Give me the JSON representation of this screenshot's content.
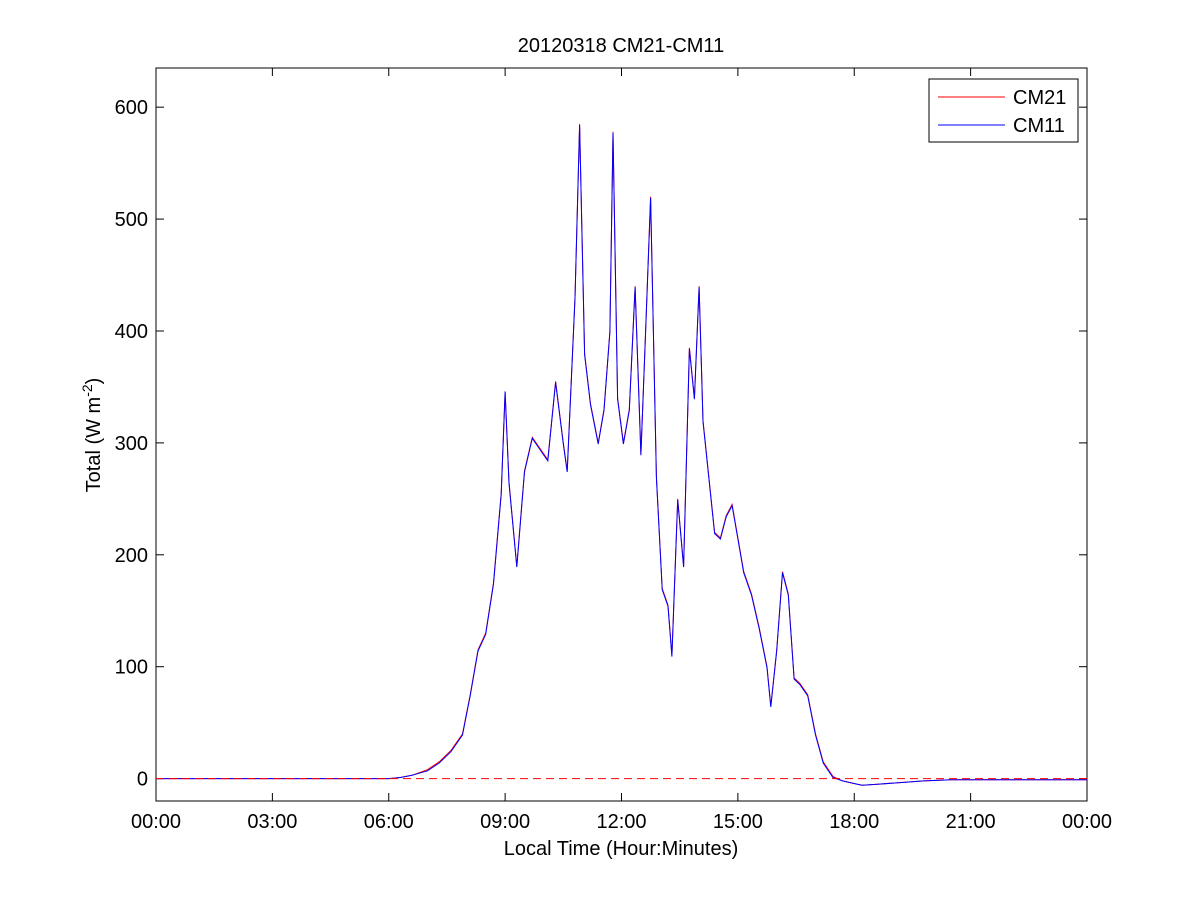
{
  "chart_data": {
    "type": "line",
    "title": "20120318 CM21-CM11",
    "xlabel": "Local Time (Hour:Minutes)",
    "ylabel": {
      "main": "Total (W m",
      "sup": "-2",
      "close": ")"
    },
    "xlim": [
      0,
      24
    ],
    "ylim": [
      -20,
      635
    ],
    "x_ticks": [
      0,
      3,
      6,
      9,
      12,
      15,
      18,
      21,
      24
    ],
    "x_tick_labels": [
      "00:00",
      "03:00",
      "06:00",
      "09:00",
      "12:00",
      "15:00",
      "18:00",
      "21:00",
      "00:00"
    ],
    "y_ticks": [
      0,
      100,
      200,
      300,
      400,
      500,
      600
    ],
    "y_tick_labels": [
      "0",
      "100",
      "200",
      "300",
      "400",
      "500",
      "600"
    ],
    "grid": false,
    "legend_position": "top-right",
    "zero_line": {
      "y": 0,
      "style": "dashed",
      "color": "#ff0000"
    },
    "series": [
      {
        "name": "CM21",
        "color": "#ff0000",
        "x": [
          0,
          6.0,
          6.3,
          6.6,
          7.0,
          7.3,
          7.6,
          7.9,
          8.1,
          8.3,
          8.5,
          8.7,
          8.9,
          9.0,
          9.1,
          9.3,
          9.5,
          9.7,
          9.9,
          10.1,
          10.3,
          10.5,
          10.6,
          10.8,
          10.92,
          11.05,
          11.2,
          11.4,
          11.55,
          11.7,
          11.78,
          11.9,
          12.05,
          12.2,
          12.35,
          12.5,
          12.62,
          12.75,
          12.9,
          13.05,
          13.2,
          13.3,
          13.45,
          13.6,
          13.75,
          13.88,
          14.0,
          14.1,
          14.25,
          14.4,
          14.55,
          14.7,
          14.85,
          15.0,
          15.15,
          15.35,
          15.55,
          15.75,
          15.85,
          16.0,
          16.15,
          16.3,
          16.45,
          16.6,
          16.8,
          17.0,
          17.2,
          17.45,
          17.7,
          17.95,
          18.2,
          18.6,
          19.0,
          19.4,
          19.8,
          20.5,
          21.0,
          22.0,
          24.0
        ],
        "values": [
          0,
          0,
          1,
          3,
          8,
          15,
          25,
          40,
          75,
          115,
          130,
          175,
          255,
          345,
          265,
          190,
          275,
          305,
          295,
          285,
          355,
          300,
          275,
          430,
          585,
          380,
          335,
          300,
          330,
          400,
          578,
          340,
          300,
          330,
          440,
          290,
          400,
          520,
          270,
          170,
          155,
          110,
          250,
          190,
          385,
          340,
          440,
          320,
          270,
          220,
          215,
          235,
          245,
          215,
          185,
          165,
          135,
          100,
          65,
          115,
          185,
          165,
          90,
          85,
          75,
          40,
          15,
          2,
          -2,
          -4,
          -6,
          -5,
          -4,
          -3,
          -2,
          -1,
          -1,
          -1,
          -1
        ]
      },
      {
        "name": "CM11",
        "color": "#0000ff",
        "x": [
          0,
          6.0,
          6.3,
          6.6,
          7.0,
          7.3,
          7.6,
          7.9,
          8.1,
          8.3,
          8.5,
          8.7,
          8.9,
          9.0,
          9.1,
          9.3,
          9.5,
          9.7,
          9.9,
          10.1,
          10.3,
          10.5,
          10.6,
          10.8,
          10.92,
          11.05,
          11.2,
          11.4,
          11.55,
          11.7,
          11.78,
          11.9,
          12.05,
          12.2,
          12.35,
          12.5,
          12.62,
          12.75,
          12.9,
          13.05,
          13.2,
          13.3,
          13.45,
          13.6,
          13.75,
          13.88,
          14.0,
          14.1,
          14.25,
          14.4,
          14.55,
          14.7,
          14.85,
          15.0,
          15.15,
          15.35,
          15.55,
          15.75,
          15.85,
          16.0,
          16.15,
          16.3,
          16.45,
          16.6,
          16.8,
          17.0,
          17.2,
          17.45,
          17.7,
          17.95,
          18.2,
          18.6,
          19.0,
          19.4,
          19.8,
          20.5,
          21.0,
          22.0,
          24.0
        ],
        "values": [
          0,
          0,
          1,
          3,
          7,
          14,
          24,
          39,
          74,
          114,
          129,
          174,
          254,
          346,
          264,
          189,
          274,
          304,
          294,
          284,
          354,
          299,
          274,
          429,
          584,
          379,
          334,
          299,
          329,
          399,
          577,
          339,
          299,
          329,
          439,
          289,
          399,
          519,
          269,
          169,
          154,
          109,
          249,
          189,
          384,
          339,
          439,
          319,
          269,
          219,
          214,
          234,
          244,
          214,
          184,
          164,
          134,
          99,
          64,
          114,
          184,
          164,
          89,
          84,
          74,
          39,
          14,
          1,
          -2,
          -4,
          -6,
          -5,
          -4,
          -3,
          -2,
          -1,
          -1,
          -1,
          -1
        ]
      }
    ]
  }
}
